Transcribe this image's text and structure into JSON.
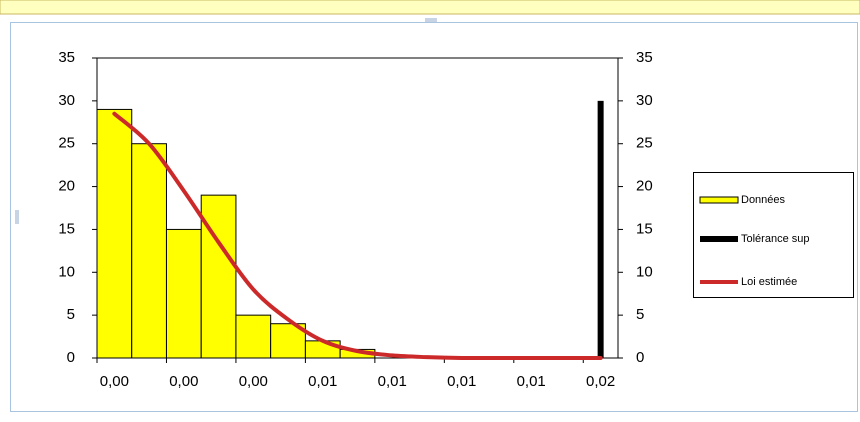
{
  "chart_data": {
    "type": "bar",
    "categories": [
      "0,00",
      null,
      "0,00",
      null,
      "0,00",
      null,
      "0,01",
      null,
      "0,01",
      null,
      "0,01",
      null,
      "0,01",
      null,
      "0,02"
    ],
    "series": [
      {
        "name": "Données",
        "type": "bar",
        "color": "#ffff00",
        "values": [
          29,
          25,
          15,
          19,
          5,
          4,
          2,
          1,
          0,
          0,
          0,
          0,
          0,
          0,
          0
        ]
      },
      {
        "name": "Tolérance sup",
        "type": "bar",
        "color": "#000000",
        "values": [
          null,
          null,
          null,
          null,
          null,
          null,
          null,
          null,
          null,
          null,
          null,
          null,
          null,
          null,
          30
        ]
      },
      {
        "name": "Loi estimée",
        "type": "line",
        "color": "#cc2a2a",
        "values": [
          28.5,
          25,
          19.5,
          13.5,
          8,
          4.5,
          2,
          0.8,
          0.3,
          0.1,
          0,
          0,
          0,
          0,
          0
        ]
      }
    ],
    "ylim": [
      0,
      35
    ],
    "yticks": [
      0,
      5,
      10,
      15,
      20,
      25,
      30,
      35
    ],
    "y2lim": [
      0,
      35
    ],
    "y2ticks": [
      0,
      5,
      10,
      15,
      20,
      25,
      30,
      35
    ],
    "legend": "right"
  }
}
